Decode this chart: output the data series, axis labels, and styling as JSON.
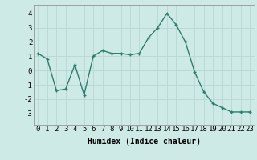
{
  "x": [
    0,
    1,
    2,
    3,
    4,
    5,
    6,
    7,
    8,
    9,
    10,
    11,
    12,
    13,
    14,
    15,
    16,
    17,
    18,
    19,
    20,
    21,
    22,
    23
  ],
  "y": [
    1.2,
    0.8,
    -1.4,
    -1.3,
    0.4,
    -1.7,
    1.0,
    1.4,
    1.2,
    1.2,
    1.1,
    1.2,
    2.3,
    3.0,
    4.0,
    3.2,
    2.0,
    -0.1,
    -1.5,
    -2.3,
    -2.6,
    -2.9,
    -2.9,
    -2.9
  ],
  "line_color": "#2e7d6e",
  "marker": "+",
  "markersize": 3,
  "linewidth": 1.0,
  "bg_color": "#ceeae6",
  "grid_color": "#b8d8d4",
  "xlabel": "Humidex (Indice chaleur)",
  "xlabel_fontsize": 7,
  "tick_fontsize": 6.5,
  "ylim": [
    -3.8,
    4.6
  ],
  "yticks": [
    -3,
    -2,
    -1,
    0,
    1,
    2,
    3,
    4
  ],
  "xticks": [
    0,
    1,
    2,
    3,
    4,
    5,
    6,
    7,
    8,
    9,
    10,
    11,
    12,
    13,
    14,
    15,
    16,
    17,
    18,
    19,
    20,
    21,
    22,
    23
  ]
}
